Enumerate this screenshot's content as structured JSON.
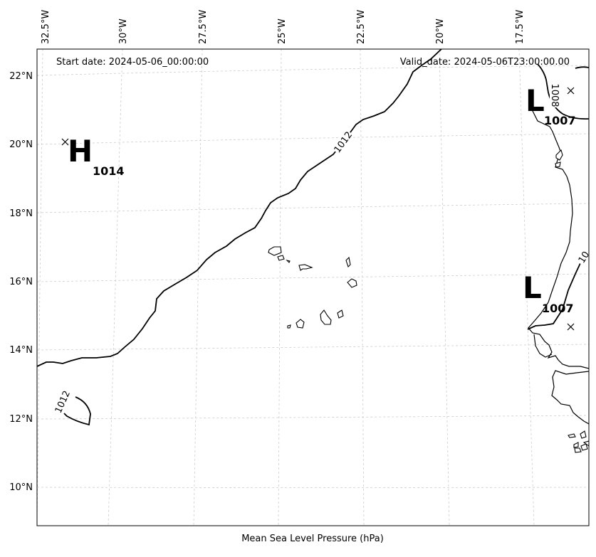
{
  "map": {
    "caption": "Mean Sea Level Pressure (hPa)",
    "start_date": "Start date: 2024-05-06_00:00:00",
    "valid_date": "Valid_date: 2024-05-06T23:00:00.00",
    "lon_ticks": [
      "32.5°W",
      "30°W",
      "27.5°W",
      "25°W",
      "22.5°W",
      "20°W",
      "17.5°W"
    ],
    "lat_ticks": [
      "22°N",
      "20°N",
      "18°N",
      "16°N",
      "14°N",
      "12°N",
      "10°N"
    ],
    "contour_labels": {
      "main": "1012",
      "small_closed": "1012",
      "northeast": "1008",
      "east_partial": "10"
    },
    "pressure_centers": [
      {
        "letter": "H",
        "value": "1014"
      },
      {
        "letter": "L",
        "value": "1007"
      },
      {
        "letter": "L",
        "value": "1007"
      }
    ]
  }
}
